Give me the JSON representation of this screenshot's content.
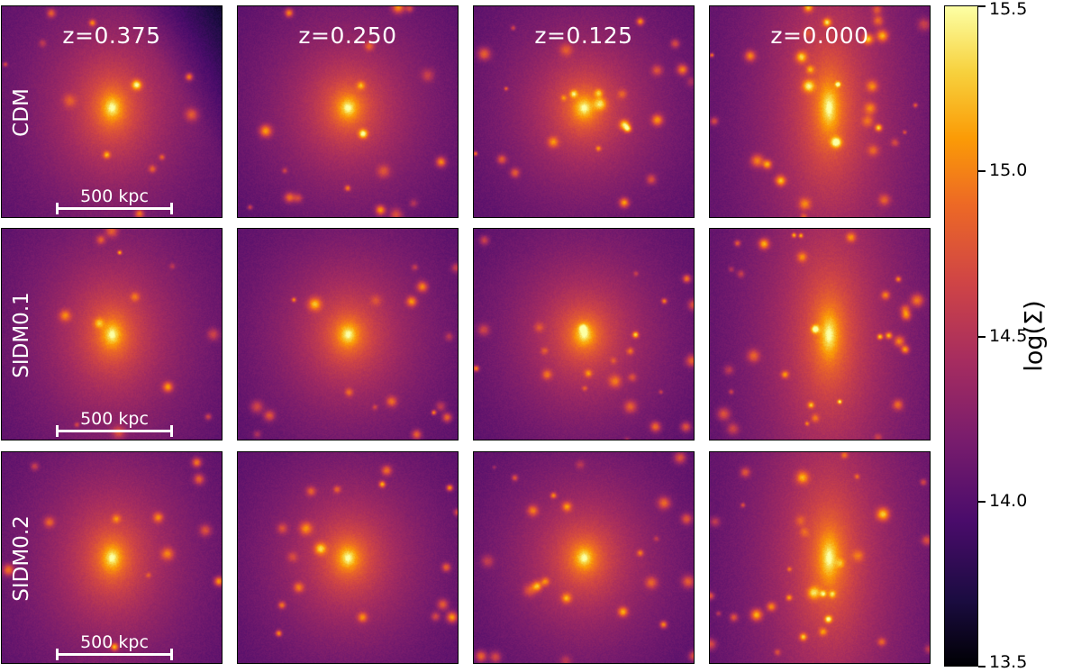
{
  "columns": [
    "z=0.375",
    "z=0.250",
    "z=0.125",
    "z=0.000"
  ],
  "rows": [
    "CDM",
    "SIDM0.1",
    "SIDM0.2"
  ],
  "scalebar_label": "500 kpc",
  "colorbar": {
    "label": "log(Σ)",
    "colormap": "inferno",
    "range": [
      13.5,
      15.5
    ],
    "ticks": [
      "13.5",
      "14.0",
      "14.5",
      "15.0",
      "15.5"
    ]
  }
}
